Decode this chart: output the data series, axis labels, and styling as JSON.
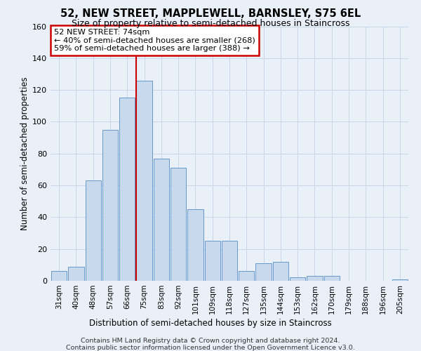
{
  "title": "52, NEW STREET, MAPPLEWELL, BARNSLEY, S75 6EL",
  "subtitle": "Size of property relative to semi-detached houses in Staincross",
  "xlabel": "Distribution of semi-detached houses by size in Staincross",
  "ylabel": "Number of semi-detached properties",
  "categories": [
    "31sqm",
    "40sqm",
    "48sqm",
    "57sqm",
    "66sqm",
    "75sqm",
    "83sqm",
    "92sqm",
    "101sqm",
    "109sqm",
    "118sqm",
    "127sqm",
    "135sqm",
    "144sqm",
    "153sqm",
    "162sqm",
    "170sqm",
    "179sqm",
    "188sqm",
    "196sqm",
    "205sqm"
  ],
  "values": [
    6,
    9,
    63,
    95,
    115,
    126,
    77,
    71,
    45,
    25,
    25,
    6,
    11,
    12,
    2,
    3,
    3,
    0,
    0,
    0,
    1
  ],
  "bar_color": "#c8d9ee",
  "bar_edge_color": "#6699cc",
  "vline_index": 5,
  "annotation_text": "52 NEW STREET: 74sqm\n← 40% of semi-detached houses are smaller (268)\n59% of semi-detached houses are larger (388) →",
  "annotation_box_color": "#ffffff",
  "annotation_box_edge_color": "#cc0000",
  "vline_color": "#cc0000",
  "grid_color": "#c8d8e8",
  "background_color": "#eaf0f8",
  "footer_line1": "Contains HM Land Registry data © Crown copyright and database right 2024.",
  "footer_line2": "Contains public sector information licensed under the Open Government Licence v3.0.",
  "ylim": [
    0,
    160
  ],
  "yticks": [
    0,
    20,
    40,
    60,
    80,
    100,
    120,
    140,
    160
  ]
}
